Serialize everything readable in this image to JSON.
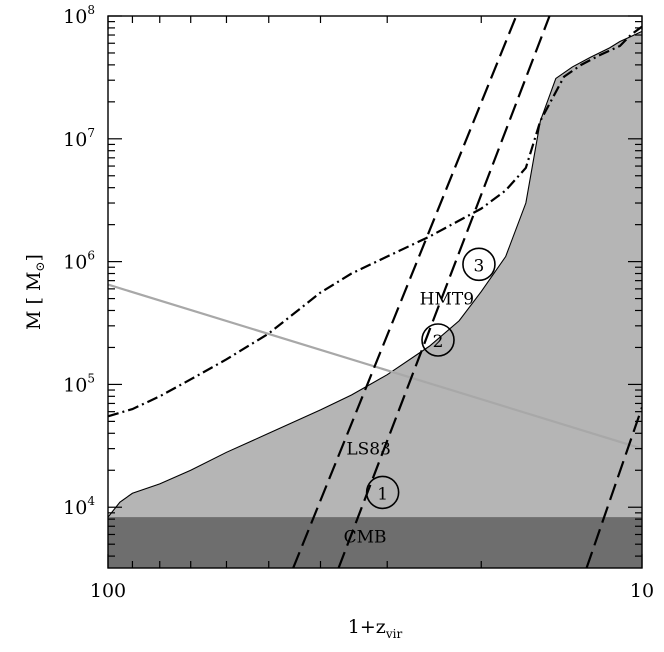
{
  "chart_data": {
    "type": "line",
    "title": "",
    "xlabel": "1+z",
    "xlabel_sub": "vir",
    "ylabel": "M [ M",
    "ylabel_unit_symbol": "⊙",
    "ylabel_close": "]",
    "x_scale": "log",
    "y_scale": "log",
    "x_reversed": true,
    "xlim": [
      100,
      10
    ],
    "ylim": [
      3200,
      100000000
    ],
    "x_tick_labels": [
      "100",
      "10"
    ],
    "y_ticks": [
      {
        "base": "10",
        "exp": "4"
      },
      {
        "base": "10",
        "exp": "5"
      },
      {
        "base": "10",
        "exp": "6"
      },
      {
        "base": "10",
        "exp": "7"
      },
      {
        "base": "10",
        "exp": "8"
      }
    ],
    "regions": [
      {
        "name": "CMB",
        "color": "#6e6e6e",
        "x": [
          100,
          10
        ],
        "y_upper": [
          8300,
          8300
        ]
      },
      {
        "name": "LS83",
        "color": "#b5b5b5",
        "x": [
          100,
          95,
          90,
          80,
          70,
          60,
          50,
          40,
          35,
          30,
          25,
          22,
          20,
          18,
          16.5,
          15.5,
          14.5,
          13.5,
          12.5,
          11.5,
          11,
          10.5,
          10
        ],
        "y_upper": [
          8300,
          11000,
          13000,
          15500,
          20000,
          28000,
          40000,
          62000,
          82000,
          120000,
          205000,
          330000,
          570000,
          1100000,
          3000000,
          14000000,
          31000000,
          38500000,
          46000000,
          55000000,
          62000000,
          68000000,
          75000000
        ]
      }
    ],
    "series": [
      {
        "style": "dash-dot",
        "color": "#000000",
        "x": [
          100,
          90,
          80,
          70,
          60,
          50,
          40,
          35,
          30,
          25,
          20,
          18,
          16.5,
          15.5,
          14,
          13,
          12,
          11,
          10.5,
          10
        ],
        "y": [
          55000,
          63000,
          80000,
          110000,
          160000,
          260000,
          560000,
          800000,
          1100000,
          1600000,
          2700000,
          3800000,
          5800000,
          14000000,
          32000000,
          40000000,
          48000000,
          57000000,
          70000000,
          82000000
        ]
      },
      {
        "style": "solid",
        "color": "#a8a8a8",
        "x": [
          100,
          10
        ],
        "y": [
          650000,
          30000
        ]
      },
      {
        "style": "dashed",
        "color": "#000000",
        "x": [
          45,
          17.2
        ],
        "y": [
          3200,
          100000000
        ]
      },
      {
        "style": "dashed",
        "color": "#000000",
        "x": [
          37,
          14.9
        ],
        "y": [
          3200,
          100000000
        ]
      },
      {
        "style": "dashed",
        "color": "#000000",
        "x": [
          12.7,
          10
        ],
        "y": [
          3200,
          65000
        ]
      }
    ],
    "annotations": [
      {
        "text": "HMT9",
        "x": 23.2,
        "y": 500000
      },
      {
        "text": "LS83",
        "x": 32.5,
        "y": 30000
      },
      {
        "text": "CMB",
        "x": 33.0,
        "y": 5800
      }
    ],
    "circle_markers": [
      {
        "label": "1",
        "x": 30.6,
        "y": 13200
      },
      {
        "label": "2",
        "x": 24.1,
        "y": 230000
      },
      {
        "label": "3",
        "x": 20.2,
        "y": 950000
      }
    ]
  }
}
